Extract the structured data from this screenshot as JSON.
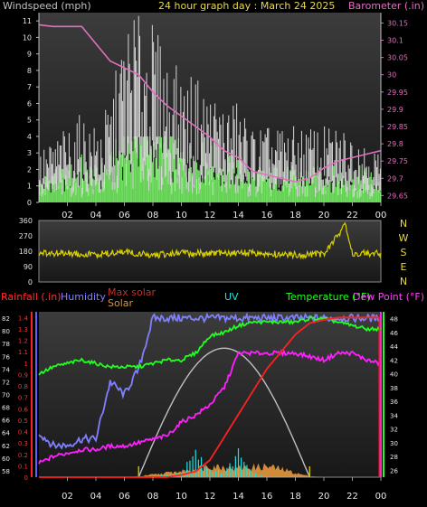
{
  "header": {
    "title": "24 hour graph day : March 24 2025",
    "left_label": "Windspeed (mph)",
    "right_label": "Barometer (.in)"
  },
  "colors": {
    "background": "#000000",
    "wind_gust": "#d8d8d8",
    "wind_avg": "#7cff6a",
    "barometer": "#e070c0",
    "direction": "#d8d000",
    "rain": "#ff2020",
    "humidity": "#8080ff",
    "max_solar": "#c0c0c0",
    "solar": "#f0a040",
    "uv": "#20e0e0",
    "temperature": "#20ff20",
    "dew_point": "#ff20ff",
    "day_marker": "#c8c800"
  },
  "time_axis": {
    "labels": [
      "02",
      "04",
      "06",
      "08",
      "10",
      "12",
      "14",
      "16",
      "18",
      "20",
      "22",
      "00"
    ]
  },
  "wind_panel": {
    "left_ticks": [
      "0",
      "1",
      "2",
      "3",
      "4",
      "5",
      "6",
      "7",
      "8",
      "9",
      "10",
      "11"
    ],
    "right_ticks": [
      "29.65",
      "29.7",
      "29.75",
      "29.8",
      "29.85",
      "29.9",
      "29.95",
      "30",
      "30.05",
      "30.1",
      "30.15"
    ]
  },
  "direction_panel": {
    "left_ticks": [
      "360",
      "270",
      "180",
      "90",
      "0"
    ],
    "right_labels": [
      "N",
      "W",
      "S",
      "E",
      "N"
    ]
  },
  "lower_panel": {
    "legend": {
      "rainfall": "Rainfall (.in)",
      "humidity": "Humidity",
      "max_solar": "Max solar",
      "solar": "Solar",
      "uv": "UV",
      "temperature": "Temperature (°F)",
      "dew_point": "Dew Point (°F)"
    },
    "rain_ticks": [
      "0",
      "0.1",
      "0.2",
      "0.3",
      "0.4",
      "0.5",
      "0.6",
      "0.7",
      "0.8",
      "0.9",
      "1",
      "1.1",
      "1.2",
      "1.3",
      "1.4"
    ],
    "humidity_ticks": [
      "58",
      "60",
      "62",
      "64",
      "66",
      "68",
      "70",
      "72",
      "74",
      "76",
      "78",
      "80",
      "82"
    ],
    "temp_ticks": [
      "26",
      "28",
      "30",
      "32",
      "34",
      "36",
      "38",
      "40",
      "42",
      "44",
      "46",
      "48"
    ]
  },
  "chart_data": [
    {
      "type": "line",
      "title": "24 hour graph day : March 24 2025",
      "ylabel": "Windspeed (mph)",
      "y2label": "Barometer (.in)",
      "ylim": [
        0,
        11.5
      ],
      "y2lim": [
        29.63,
        30.18
      ],
      "x_hours": [
        0,
        1,
        2,
        3,
        4,
        5,
        6,
        7,
        8,
        9,
        10,
        11,
        12,
        13,
        14,
        15,
        16,
        17,
        18,
        19,
        20,
        21,
        22,
        23,
        24
      ],
      "series": [
        {
          "name": "Windspeed (mph)",
          "kind": "gust_spikes",
          "values": [
            2,
            2.5,
            3,
            3.5,
            3,
            4,
            7,
            8,
            7,
            6,
            5,
            5,
            4.5,
            4,
            4,
            3,
            3,
            3,
            3,
            3,
            3,
            3,
            3,
            2.5,
            2
          ]
        },
        {
          "name": "Average windspeed",
          "kind": "filled",
          "values": [
            1,
            1.5,
            1.5,
            2,
            1.5,
            2,
            3.5,
            4,
            3.5,
            3,
            2.5,
            2.5,
            2.5,
            2,
            2,
            1.5,
            1.5,
            1.5,
            1.5,
            1.5,
            1.5,
            1.5,
            1.5,
            1.5,
            1
          ]
        },
        {
          "name": "Barometer (.in)",
          "axis": "right",
          "values": [
            30.145,
            30.14,
            30.14,
            30.14,
            30.09,
            30.04,
            30.02,
            30.0,
            29.95,
            29.91,
            29.88,
            29.85,
            29.82,
            29.78,
            29.76,
            29.72,
            29.71,
            29.7,
            29.69,
            29.7,
            29.73,
            29.75,
            29.76,
            29.77,
            29.78
          ]
        }
      ]
    },
    {
      "type": "line",
      "ylabel": "Wind direction",
      "ylim": [
        0,
        360
      ],
      "x_hours": [
        0,
        2,
        4,
        6,
        8,
        10,
        12,
        14,
        16,
        18,
        20,
        21.5,
        22,
        24
      ],
      "series": [
        {
          "name": "Wind direction",
          "values": [
            165,
            170,
            160,
            175,
            155,
            170,
            165,
            170,
            165,
            160,
            165,
            330,
            170,
            165
          ]
        }
      ]
    },
    {
      "type": "line",
      "x_hours": [
        0,
        1,
        2,
        3,
        4,
        5,
        6,
        7,
        8,
        9,
        10,
        11,
        12,
        13,
        14,
        15,
        16,
        17,
        18,
        19,
        20,
        21,
        22,
        23,
        23.9
      ],
      "series": [
        {
          "name": "Rainfall (.in)",
          "axis": "rain",
          "ylim": [
            0,
            1.45
          ],
          "values": [
            0,
            0,
            0,
            0,
            0,
            0,
            0,
            0,
            0,
            0,
            0.02,
            0.05,
            0.15,
            0.35,
            0.55,
            0.75,
            0.95,
            1.1,
            1.25,
            1.35,
            1.38,
            1.4,
            1.4,
            1.4,
            1.4
          ]
        },
        {
          "name": "Humidity",
          "axis": "humidity",
          "ylim": [
            57,
            83
          ],
          "values": [
            64,
            62,
            62,
            63,
            63,
            72,
            70,
            74,
            82,
            82,
            82,
            82,
            82,
            82,
            82,
            82,
            82,
            82,
            82,
            82,
            82,
            82,
            82,
            82,
            82
          ]
        },
        {
          "name": "Max solar",
          "axis": "solar",
          "ylim": [
            0,
            1000
          ],
          "values": [
            0,
            0,
            0,
            0,
            0,
            0,
            0,
            50,
            250,
            450,
            620,
            730,
            780,
            730,
            620,
            450,
            250,
            50,
            0,
            0,
            0,
            0,
            0,
            0,
            0
          ]
        },
        {
          "name": "Solar",
          "axis": "solar",
          "ylim": [
            0,
            1000
          ],
          "values": [
            0,
            0,
            0,
            0,
            0,
            0,
            0,
            5,
            15,
            25,
            35,
            50,
            70,
            60,
            55,
            60,
            65,
            50,
            25,
            5,
            0,
            0,
            0,
            0,
            0
          ]
        },
        {
          "name": "UV",
          "axis": "solar",
          "ylim": [
            0,
            1000
          ],
          "values": [
            0,
            0,
            0,
            0,
            0,
            0,
            0,
            0,
            0,
            20,
            40,
            180,
            60,
            40,
            180,
            30,
            0,
            0,
            0,
            0,
            0,
            0,
            0,
            0,
            0
          ]
        },
        {
          "name": "Temperature (°F)",
          "axis": "temp",
          "ylim": [
            25,
            49
          ],
          "values": [
            40,
            41,
            41.5,
            42,
            41.5,
            41,
            41,
            41,
            41.5,
            42,
            42,
            43,
            45.5,
            46,
            47,
            47.5,
            47.5,
            47.5,
            47.5,
            48,
            48,
            47.5,
            47,
            46.5,
            46.5
          ]
        },
        {
          "name": "Dew Point (°F)",
          "axis": "temp",
          "ylim": [
            25,
            49
          ],
          "values": [
            27,
            28,
            28.5,
            29,
            29,
            29.5,
            29.5,
            30,
            30.5,
            31,
            33,
            34,
            35.5,
            38,
            43,
            43,
            43,
            43,
            43,
            42.5,
            42,
            43,
            43,
            42,
            41.5
          ]
        }
      ]
    }
  ]
}
